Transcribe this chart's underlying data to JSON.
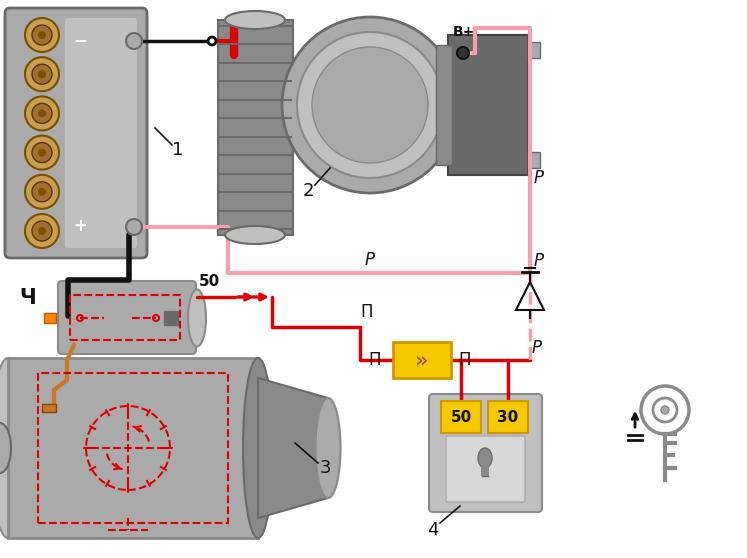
{
  "bg": "#ffffff",
  "pink": "#F4A0B0",
  "red": "#DD0000",
  "black": "#111111",
  "g1": "#6a6a6a",
  "g2": "#8a8a8a",
  "g3": "#aaaaaa",
  "g4": "#c0c0c0",
  "g5": "#d8d8d8",
  "g6": "#e8e8e8",
  "cell_outer": "#c8a050",
  "cell_mid": "#a07030",
  "cell_inner": "#7a5000",
  "copper": "#cc7722",
  "yellow": "#F5C800",
  "label_1": "1",
  "label_2": "2",
  "label_3": "3",
  "label_4": "4",
  "ch": "Ч",
  "P": "P",
  "Pi": "П",
  "Bplus": "B+"
}
